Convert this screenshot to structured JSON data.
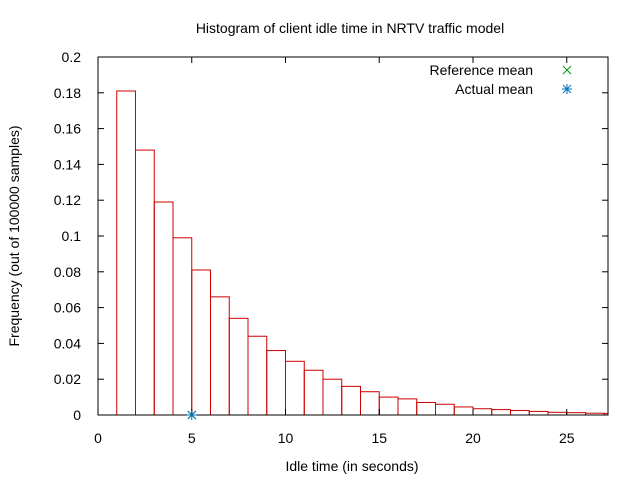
{
  "chart_data": {
    "type": "bar",
    "title": "Histogram of client idle time in NRTV traffic model",
    "xlabel": "Idle time (in seconds)",
    "ylabel": "Frequency (out of 100000 samples)",
    "xlim": [
      0,
      27.2
    ],
    "ylim": [
      0,
      0.2
    ],
    "xticks": [
      0,
      5,
      10,
      15,
      20,
      25
    ],
    "yticks": [
      0,
      0.02,
      0.04,
      0.06,
      0.08,
      0.1,
      0.12,
      0.14,
      0.16,
      0.18,
      0.2
    ],
    "bin_width": 1,
    "bins": [
      {
        "x0": 1,
        "value": 0.181
      },
      {
        "x0": 2,
        "value": 0.148
      },
      {
        "x0": 3,
        "value": 0.119
      },
      {
        "x0": 4,
        "value": 0.099
      },
      {
        "x0": 5,
        "value": 0.081
      },
      {
        "x0": 6,
        "value": 0.066
      },
      {
        "x0": 7,
        "value": 0.054
      },
      {
        "x0": 8,
        "value": 0.044
      },
      {
        "x0": 9,
        "value": 0.036
      },
      {
        "x0": 10,
        "value": 0.03
      },
      {
        "x0": 11,
        "value": 0.025
      },
      {
        "x0": 12,
        "value": 0.02
      },
      {
        "x0": 13,
        "value": 0.016
      },
      {
        "x0": 14,
        "value": 0.013
      },
      {
        "x0": 15,
        "value": 0.01
      },
      {
        "x0": 16,
        "value": 0.009
      },
      {
        "x0": 17,
        "value": 0.007
      },
      {
        "x0": 18,
        "value": 0.006
      },
      {
        "x0": 19,
        "value": 0.0045
      },
      {
        "x0": 20,
        "value": 0.0035
      },
      {
        "x0": 21,
        "value": 0.003
      },
      {
        "x0": 22,
        "value": 0.0025
      },
      {
        "x0": 23,
        "value": 0.002
      },
      {
        "x0": 24,
        "value": 0.0015
      },
      {
        "x0": 25,
        "value": 0.0013
      },
      {
        "x0": 26,
        "value": 0.001
      },
      {
        "x0": 27,
        "value": 0.0008
      }
    ],
    "bar_color": "#cc0000",
    "points": [
      {
        "name": "Reference mean",
        "x": 5,
        "y": 0,
        "marker": "x",
        "color": "#009900"
      },
      {
        "name": "Actual mean",
        "x": 5,
        "y": 0,
        "marker": "star",
        "color": "#0072bd"
      }
    ],
    "legend": {
      "placement": "top-right",
      "entries": [
        "Reference mean",
        "Actual mean"
      ]
    },
    "grid": false
  }
}
